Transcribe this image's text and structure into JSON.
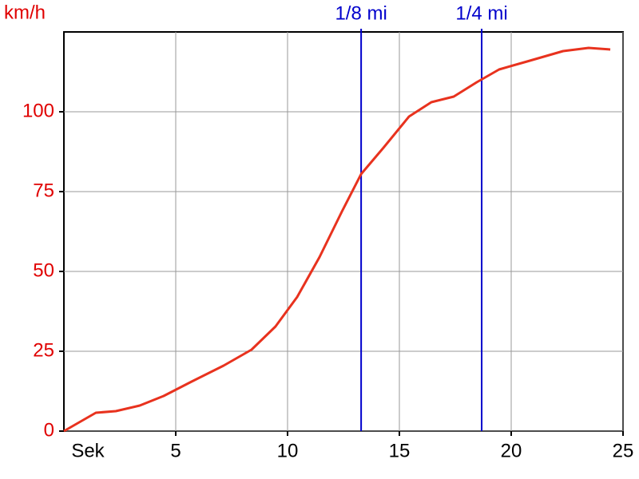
{
  "chart_data": {
    "type": "line",
    "ylabel": "km/h",
    "xlabel": "Sek",
    "x": [
      0,
      1.43,
      2.32,
      3.39,
      4.46,
      5.71,
      7.14,
      8.39,
      9.46,
      10.43,
      11.43,
      12.43,
      13.29,
      14.29,
      15.43,
      16.43,
      17.43,
      18.46,
      19.46,
      20.71,
      22.32,
      23.46,
      24.43
    ],
    "series": [
      {
        "color": "#e8321e",
        "values": [
          0,
          5.75,
          6.25,
          8,
          11,
          15.5,
          20.5,
          25.5,
          32.75,
          42,
          54.5,
          68.75,
          80.5,
          88.75,
          98.5,
          103,
          104.75,
          109.25,
          113.25,
          115.75,
          119,
          120,
          119.5
        ]
      }
    ],
    "xlim": [
      0,
      25
    ],
    "xticks": [
      5,
      10,
      15,
      20,
      25
    ],
    "ylim": [
      0,
      125
    ],
    "yticks": [
      0,
      25,
      50,
      75,
      100
    ],
    "grid": true,
    "ytick_color": "#e00000",
    "markers": [
      {
        "label": "1/8 mi",
        "x": 13.29,
        "color": "#0000cc"
      },
      {
        "label": "1/4 mi",
        "x": 18.68,
        "color": "#0000cc"
      }
    ]
  }
}
